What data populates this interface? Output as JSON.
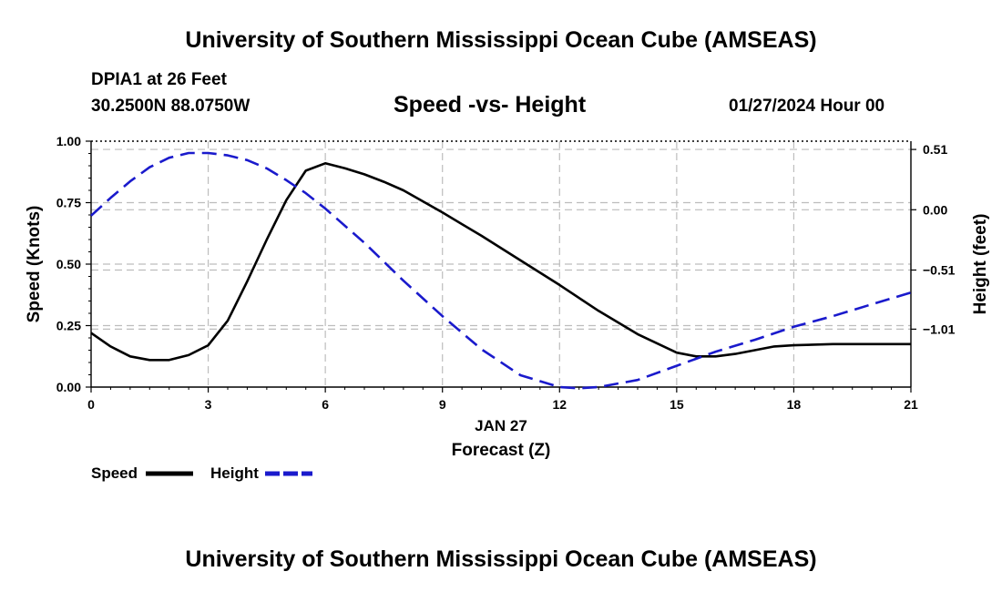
{
  "header": {
    "title": "University of Southern Mississippi Ocean Cube (AMSEAS)",
    "station": "DPIA1 at 26 Feet",
    "location": "30.2500N  88.0750W",
    "date": "01/27/2024 Hour 00"
  },
  "footer": {
    "title": "University of Southern Mississippi Ocean Cube (AMSEAS)"
  },
  "colors": {
    "speed": "#000000",
    "height": "#1a1acc",
    "grid": "#bdbdbd"
  },
  "chart_data": {
    "type": "line",
    "title": "Speed -vs- Height",
    "xlabel": "Forecast (Z)",
    "xlabel_date": "JAN 27",
    "ylabel": "Speed (Knots)",
    "y2label": "Height (feet)",
    "xlim": [
      0,
      21
    ],
    "ylim": [
      0,
      1
    ],
    "y2lim": [
      -1.5,
      0.58
    ],
    "x_ticks": [
      0,
      3,
      6,
      9,
      12,
      15,
      18,
      21
    ],
    "x_tick_labels": [
      "0",
      "3",
      "6",
      "9",
      "12",
      "15",
      "18",
      "21"
    ],
    "y_ticks": [
      0,
      0.25,
      0.5,
      0.75,
      1.0
    ],
    "y_tick_labels": [
      "0.00",
      "0.25",
      "0.50",
      "0.75",
      "1.00"
    ],
    "y2_ticks": [
      -1.01,
      -0.51,
      0.0,
      0.51
    ],
    "y2_tick_labels": [
      "−1.01",
      "−0.51",
      "0.00",
      "0.51"
    ],
    "grid": true,
    "series": [
      {
        "name": "Speed",
        "axis": "left",
        "style": "solid",
        "x": [
          0,
          0.5,
          1,
          1.5,
          2,
          2.5,
          3,
          3.5,
          4,
          4.5,
          5,
          5.5,
          6,
          6.5,
          7,
          7.5,
          8,
          9,
          10,
          11,
          12,
          13,
          14,
          15,
          15.5,
          16,
          16.5,
          17,
          17.5,
          18,
          19,
          20,
          21
        ],
        "values": [
          0.22,
          0.165,
          0.125,
          0.11,
          0.11,
          0.13,
          0.17,
          0.27,
          0.43,
          0.6,
          0.76,
          0.88,
          0.91,
          0.89,
          0.865,
          0.835,
          0.8,
          0.71,
          0.615,
          0.515,
          0.415,
          0.31,
          0.215,
          0.14,
          0.125,
          0.125,
          0.135,
          0.15,
          0.165,
          0.17,
          0.175,
          0.175,
          0.175
        ]
      },
      {
        "name": "Height",
        "axis": "right",
        "style": "dashed",
        "x": [
          0,
          0.5,
          1,
          1.5,
          2,
          2.5,
          3,
          3.5,
          4,
          4.5,
          5,
          5.5,
          6,
          7,
          8,
          9,
          10,
          11,
          12,
          12.5,
          13,
          14,
          15,
          16,
          17,
          18,
          19,
          20,
          21
        ],
        "values": [
          -0.05,
          0.1,
          0.24,
          0.36,
          0.44,
          0.48,
          0.48,
          0.46,
          0.42,
          0.35,
          0.25,
          0.14,
          0.01,
          -0.28,
          -0.6,
          -0.9,
          -1.18,
          -1.4,
          -1.5,
          -1.51,
          -1.5,
          -1.44,
          -1.32,
          -1.2,
          -1.1,
          -0.99,
          -0.9,
          -0.8,
          -0.7
        ]
      }
    ],
    "legend": [
      "Speed",
      "Height"
    ],
    "legend_position": "bottom-left"
  }
}
